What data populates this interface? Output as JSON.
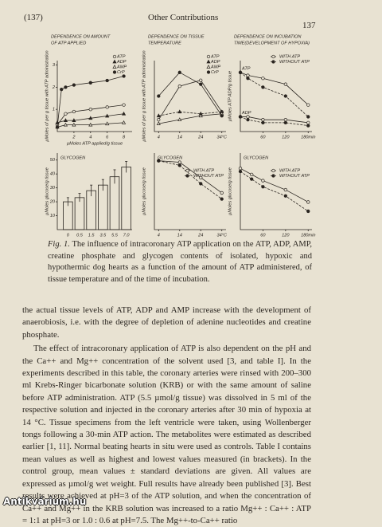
{
  "header": {
    "left": "(137)",
    "center": "Other Contributions",
    "right": "137"
  },
  "figure": {
    "panels": [
      {
        "type": "line",
        "title": [
          "DEPENDENCE ON AMOUNT",
          "OF ATP APPLIED"
        ],
        "ylabel": "µMoles of per g tissue with ATP administration",
        "xlabel": "µMoles ATP applied/g tissue",
        "xlim": [
          0,
          9
        ],
        "ylim": [
          0,
          3.2
        ],
        "xticks": [
          2,
          4,
          6,
          8
        ],
        "yticks": [
          1,
          2,
          3
        ],
        "series": [
          {
            "name": "ATP",
            "marker": "open-circle",
            "style": "solid",
            "x": [
              0,
              1,
              2,
              4,
              6,
              8
            ],
            "values": [
              0.3,
              0.8,
              0.9,
              1.0,
              1.1,
              1.2
            ]
          },
          {
            "name": "ADP",
            "marker": "filled-triangle",
            "style": "solid",
            "x": [
              0,
              1,
              2,
              4,
              6,
              8
            ],
            "values": [
              0.4,
              0.5,
              0.5,
              0.6,
              0.7,
              0.8
            ]
          },
          {
            "name": "AMP",
            "marker": "open-triangle",
            "style": "solid",
            "x": [
              0,
              1,
              2,
              4,
              6,
              8
            ],
            "values": [
              0.2,
              0.3,
              0.3,
              0.3,
              0.35,
              0.4
            ]
          },
          {
            "name": "CrP",
            "marker": "filled-circle",
            "style": "solid",
            "x": [
              0,
              0.5,
              1,
              2,
              4,
              6,
              8
            ],
            "values": [
              0.2,
              1.9,
              2.0,
              2.1,
              2.2,
              2.3,
              2.5
            ]
          }
        ]
      },
      {
        "type": "line",
        "title": [
          "DEPENDENCE ON TISSUE",
          "TEMPERATURE"
        ],
        "ylabel": "µMoles of per g tissue with ATP administration",
        "xlim": [
          2,
          36
        ],
        "ylim": [
          0,
          1.8
        ],
        "xticks": [
          4,
          14,
          24,
          {
            "value": 34,
            "label": "34°C"
          }
        ],
        "series": [
          {
            "name": "ATP",
            "marker": "open-circle",
            "style": "solid",
            "x": [
              4,
              14,
              24,
              34
            ],
            "values": [
              0.3,
              1.15,
              1.3,
              0.5
            ]
          },
          {
            "name": "ADP",
            "marker": "filled-triangle",
            "style": "dashed",
            "x": [
              4,
              14,
              24,
              34
            ],
            "values": [
              0.4,
              0.5,
              0.45,
              0.5
            ]
          },
          {
            "name": "AMP",
            "marker": "open-triangle",
            "style": "solid",
            "x": [
              4,
              14,
              24,
              34
            ],
            "values": [
              0.2,
              0.3,
              0.4,
              0.45
            ]
          },
          {
            "name": "CrP",
            "marker": "filled-circle",
            "style": "solid",
            "x": [
              4,
              14,
              24,
              34
            ],
            "values": [
              0.9,
              1.5,
              1.2,
              0.4
            ]
          }
        ]
      },
      {
        "type": "line",
        "title": [
          "DEPENDENCE ON INCUBATION",
          "TIME(DEVELOPMENT OF HYPOXIA)"
        ],
        "ylabel": "µMoles ATP ADP/g tissue",
        "xlim": [
          0,
          190
        ],
        "ylim": [
          0,
          2.4
        ],
        "xticks": [
          60,
          120,
          {
            "value": 180,
            "label": "180min"
          }
        ],
        "legend": [
          {
            "name": "WITH ATP",
            "marker": "open-circle",
            "style": "solid"
          },
          {
            "name": "WITHOUT ATP",
            "marker": "filled-circle",
            "style": "dashed"
          }
        ],
        "series": [
          {
            "label": "ATP",
            "marker": "open-circle",
            "style": "solid",
            "x": [
              0,
              20,
              60,
              120,
              180
            ],
            "values": [
              2.0,
              1.9,
              1.8,
              1.6,
              0.9
            ]
          },
          {
            "marker": "filled-circle",
            "style": "dashed",
            "x": [
              0,
              20,
              60,
              120,
              180
            ],
            "values": [
              2.0,
              1.8,
              1.5,
              1.2,
              0.5
            ]
          },
          {
            "label": "ADP",
            "marker": "open-circle",
            "style": "solid",
            "x": [
              0,
              20,
              60,
              120,
              180
            ],
            "values": [
              0.5,
              0.5,
              0.4,
              0.4,
              0.3
            ]
          },
          {
            "marker": "filled-circle",
            "style": "dashed",
            "x": [
              0,
              20,
              60,
              120,
              180
            ],
            "values": [
              0.5,
              0.4,
              0.3,
              0.3,
              0.2
            ]
          }
        ]
      },
      {
        "type": "bar",
        "title": [
          "GLYCOGEN"
        ],
        "ylabel": "µMoles glucose/g tissue",
        "xlabel": "µMoles ATP applied/g tissue",
        "ylim": [
          0,
          55
        ],
        "yticks": [
          10,
          20,
          30,
          40,
          50
        ],
        "categories": [
          "0",
          "0.5",
          "1.5",
          "3.5",
          "5.5",
          "7.0"
        ],
        "values": [
          20,
          23,
          28,
          32,
          38,
          45
        ],
        "errors": [
          3,
          3,
          4,
          4,
          5,
          4
        ]
      },
      {
        "type": "line",
        "title": [
          "GLYCOGEN"
        ],
        "ylabel": "µMoles glucose/g tissue",
        "xlim": [
          2,
          36
        ],
        "ylim": [
          0,
          50
        ],
        "xticks": [
          4,
          14,
          24,
          {
            "value": 34,
            "label": "34°C"
          }
        ],
        "legend": [
          {
            "name": "WITH ATP",
            "marker": "open-circle",
            "style": "solid"
          },
          {
            "name": "WITHOUT ATP",
            "marker": "filled-circle",
            "style": "dashed"
          }
        ],
        "series": [
          {
            "marker": "open-circle",
            "style": "solid",
            "x": [
              4,
              14,
              24,
              34
            ],
            "values": [
              45,
              44,
              34,
              24
            ]
          },
          {
            "marker": "filled-circle",
            "style": "dashed",
            "x": [
              4,
              14,
              24,
              34
            ],
            "values": [
              45,
              42,
              30,
              20
            ]
          }
        ]
      },
      {
        "type": "line",
        "title": [
          "GLYCOGEN"
        ],
        "ylabel": "µMoles glucose/g tissue",
        "xlim": [
          0,
          190
        ],
        "ylim": [
          0,
          50
        ],
        "xticks": [
          60,
          120,
          {
            "value": 180,
            "label": "180min"
          }
        ],
        "legend": [
          {
            "name": "WITH ATP",
            "marker": "open-circle",
            "style": "solid"
          },
          {
            "name": "WITHOUT ATP",
            "marker": "filled-circle",
            "style": "dashed"
          }
        ],
        "series": [
          {
            "marker": "open-circle",
            "style": "solid",
            "x": [
              0,
              30,
              60,
              120,
              180
            ],
            "values": [
              40,
              36,
              32,
              26,
              18
            ]
          },
          {
            "marker": "filled-circle",
            "style": "dashed",
            "x": [
              0,
              30,
              60,
              120,
              180
            ],
            "values": [
              38,
              33,
              28,
              22,
              12
            ]
          }
        ]
      }
    ],
    "caption_label": "Fig. 1.",
    "caption": "The influence of intracoronary ATP application on the ATP, ADP, AMP, creatine phosphate and glycogen contents of isolated, hypoxic and hypothermic dog hearts as a function of the amount of ATP administered, of tissue temperature and of the time of incubation."
  },
  "body": {
    "paragraphs": [
      "the actual tissue levels of ATP, ADP and AMP increase with the development of anaerobiosis, i.e. with the degree of depletion of adenine nucleotides and creatine phosphate.",
      "The effect of intracoronary application of ATP is also dependent on the pH and the Ca++ and Mg++ concentration of the solvent used [3, and table I]. In the experiments described in this table, the coronary arteries were rinsed with 200–300 ml Krebs-Ringer bicarbonate solution (KRB) or with the same amount of saline before ATP administration. ATP (5.5 µmol/g tissue) was dissolved in 5 ml of the respective solution and injected in the coronary arteries after 30 min of hypoxia at 14 °C. Tissue specimens from the left ventricle were taken, using Wollenberger tongs following a 30-min ATP action. The metabolites were estimated as described earlier [1, 11]. Normal beating hearts in situ were used as controls. Table I contains mean values as well as highest and lowest values measured (in brackets). In the control group, mean values ± standard deviations are given. All values are expressed as µmol/g wet weight. Full results have already been published [3]. Best results were achieved at pH=3 of the ATP solution, and when the concentration of Ca++ and Mg++ in the KRB solution was increased to a ratio Mg++ : Ca++ : ATP = 1:1 at pH=3 or 1.0 : 0.6 at pH=7.5. The Mg++-to-Ca++ ratio"
    ]
  },
  "watermark": "Antikvárium.hu"
}
